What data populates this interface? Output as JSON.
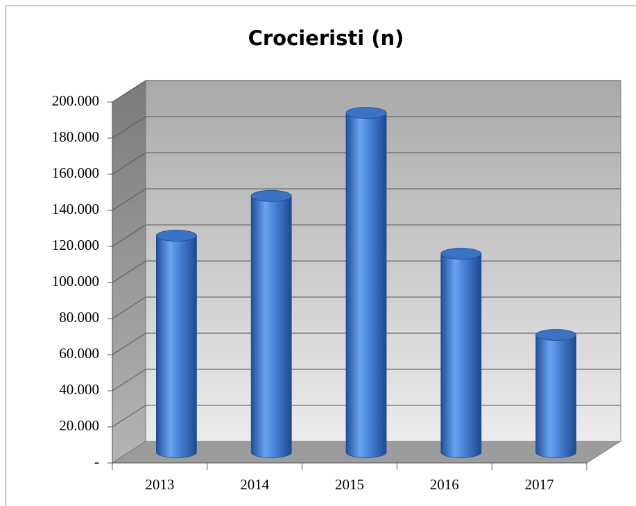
{
  "chart_data": {
    "type": "bar3d",
    "title": "Crocieristi (n)",
    "categories": [
      "2013",
      "2014",
      "2015",
      "2016",
      "2017"
    ],
    "values": [
      120000,
      142000,
      188000,
      110000,
      65000
    ],
    "color": "#4a86d8",
    "ylim": [
      0,
      200000
    ],
    "yticks": [
      {
        "value": 0,
        "label": "-"
      },
      {
        "value": 20000,
        "label": "20.000"
      },
      {
        "value": 40000,
        "label": "40.000"
      },
      {
        "value": 60000,
        "label": "60.000"
      },
      {
        "value": 80000,
        "label": "80.000"
      },
      {
        "value": 100000,
        "label": "100.000"
      },
      {
        "value": 120000,
        "label": "120.000"
      },
      {
        "value": 140000,
        "label": "140.000"
      },
      {
        "value": 160000,
        "label": "160.000"
      },
      {
        "value": 180000,
        "label": "180.000"
      },
      {
        "value": 200000,
        "label": "200.000"
      }
    ],
    "grid": true
  }
}
